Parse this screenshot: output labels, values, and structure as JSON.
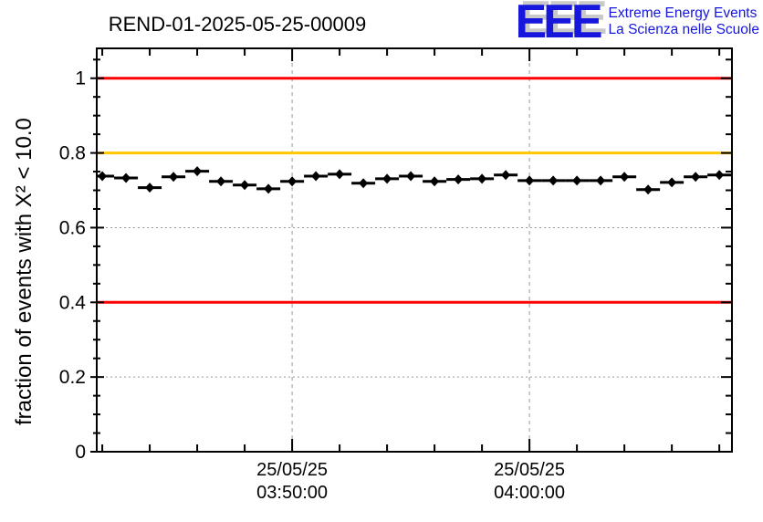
{
  "header": {
    "title": "REND-01-2025-05-25-00009"
  },
  "logo": {
    "letters": "EEE",
    "line1": "Extreme Energy Events",
    "line2": "La Scienza nelle Scuole",
    "color": "#1616dd",
    "shadow_color": "#c9c9c9"
  },
  "chart_data": {
    "type": "line",
    "title": "REND-01-2025-05-25-00009",
    "ylabel": "fraction of events with X² < 10.0",
    "xlabel": "",
    "ylim": [
      0,
      1.08
    ],
    "grid": true,
    "y_major_ticks": [
      {
        "value": 0,
        "label": "0"
      },
      {
        "value": 0.2,
        "label": "0.2"
      },
      {
        "value": 0.4,
        "label": "0.4"
      },
      {
        "value": 0.6,
        "label": "0.6"
      },
      {
        "value": 0.8,
        "label": "0.8"
      },
      {
        "value": 1,
        "label": "1"
      }
    ],
    "y_minor_step": 0.05,
    "x_domain_seconds": [
      13306,
      14912
    ],
    "x_minor_step_seconds": 120,
    "x_major_step_seconds": 600,
    "x_major_ticks": [
      {
        "seconds": 13800,
        "label_line1": "25/05/25",
        "label_line2": "03:50:00"
      },
      {
        "seconds": 14400,
        "label_line1": "25/05/25",
        "label_line2": "04:00:00"
      }
    ],
    "reference_lines": [
      {
        "value": 1.0,
        "color": "#ff0000"
      },
      {
        "value": 0.8,
        "color": "#ffc800"
      },
      {
        "value": 0.4,
        "color": "#ff0000"
      }
    ],
    "grid_color": "#999999",
    "series": [
      {
        "name": "fraction of events with chi2 < 10 per minute",
        "marker": "diamond",
        "color": "#000000",
        "x_bin_halfwidth_seconds": 30,
        "x_times": [
          "03:42:00",
          "03:43:00",
          "03:44:00",
          "03:45:00",
          "03:46:00",
          "03:47:00",
          "03:48:00",
          "03:49:00",
          "03:50:00",
          "03:51:00",
          "03:52:00",
          "03:53:00",
          "03:54:00",
          "03:55:00",
          "03:56:00",
          "03:57:00",
          "03:58:00",
          "03:59:00",
          "04:00:00",
          "04:01:00",
          "04:02:00",
          "04:03:00",
          "04:04:00",
          "04:05:00",
          "04:06:00",
          "04:07:00",
          "04:08:00"
        ],
        "x_seconds": [
          13320,
          13380,
          13440,
          13500,
          13560,
          13620,
          13680,
          13740,
          13800,
          13860,
          13920,
          13980,
          14040,
          14100,
          14160,
          14220,
          14280,
          14340,
          14400,
          14460,
          14520,
          14580,
          14640,
          14700,
          14760,
          14820,
          14880
        ],
        "values": [
          0.738,
          0.733,
          0.707,
          0.736,
          0.751,
          0.724,
          0.714,
          0.704,
          0.724,
          0.738,
          0.743,
          0.719,
          0.731,
          0.738,
          0.724,
          0.729,
          0.731,
          0.741,
          0.726,
          0.726,
          0.726,
          0.726,
          0.736,
          0.702,
          0.721,
          0.736,
          0.741
        ]
      }
    ]
  }
}
